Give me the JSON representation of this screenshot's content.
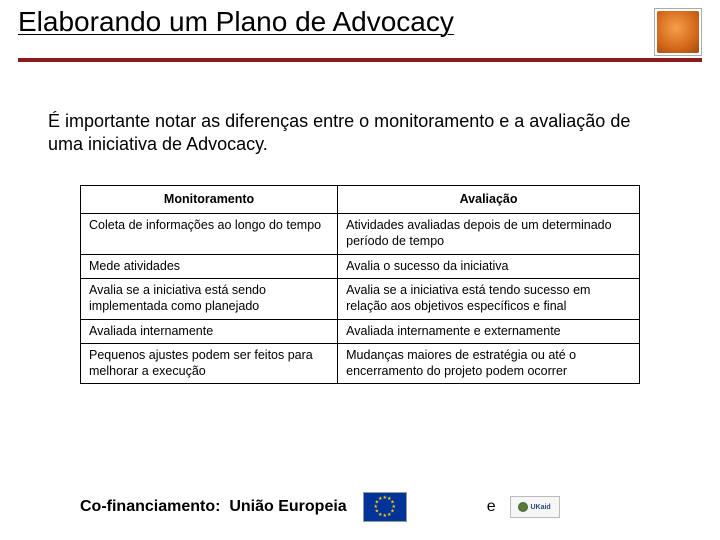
{
  "title": "Elaborando um Plano de Advocacy",
  "title_rule_color": "#8b1a1a",
  "intro": "É importante notar as diferenças entre o monitoramento e a avaliação de uma iniciativa de Advocacy.",
  "table": {
    "columns": [
      "Monitoramento",
      "Avaliação"
    ],
    "col_widths_pct": [
      46,
      54
    ],
    "header_fontsize": 12.5,
    "cell_fontsize": 12.5,
    "border_color": "#000000",
    "rows": [
      [
        "Coleta de informações ao longo do tempo",
        "Atividades avaliadas depois de um determinado período de tempo"
      ],
      [
        "Mede atividades",
        "Avalia o sucesso da iniciativa"
      ],
      [
        "Avalia se a iniciativa está sendo implementada como planejado",
        "Avalia se a iniciativa está tendo sucesso em relação aos objetivos específicos e final"
      ],
      [
        "Avaliada internamente",
        "Avaliada internamente e externamente"
      ],
      [
        "Pequenos ajustes podem ser feitos para melhorar a execução",
        "Mudanças maiores de estratégia ou até o encerramento do projeto podem ocorrer"
      ]
    ]
  },
  "footer": {
    "label_prefix": "Co-financiamento:",
    "label_main": "União Europeia",
    "connector": "e",
    "eu_flag": {
      "bg": "#003399",
      "star_color": "#ffcc00"
    },
    "ukaid_label": "UKaid"
  },
  "logo": {
    "border_color": "#aaaaaa",
    "gradient_inner": "#f4a04a",
    "gradient_outer": "#a04a10"
  },
  "typography": {
    "title_fontsize": 28,
    "intro_fontsize": 18,
    "footer_fontsize": 16,
    "font_family": "Verdana, Arial, sans-serif"
  },
  "background_color": "#ffffff"
}
